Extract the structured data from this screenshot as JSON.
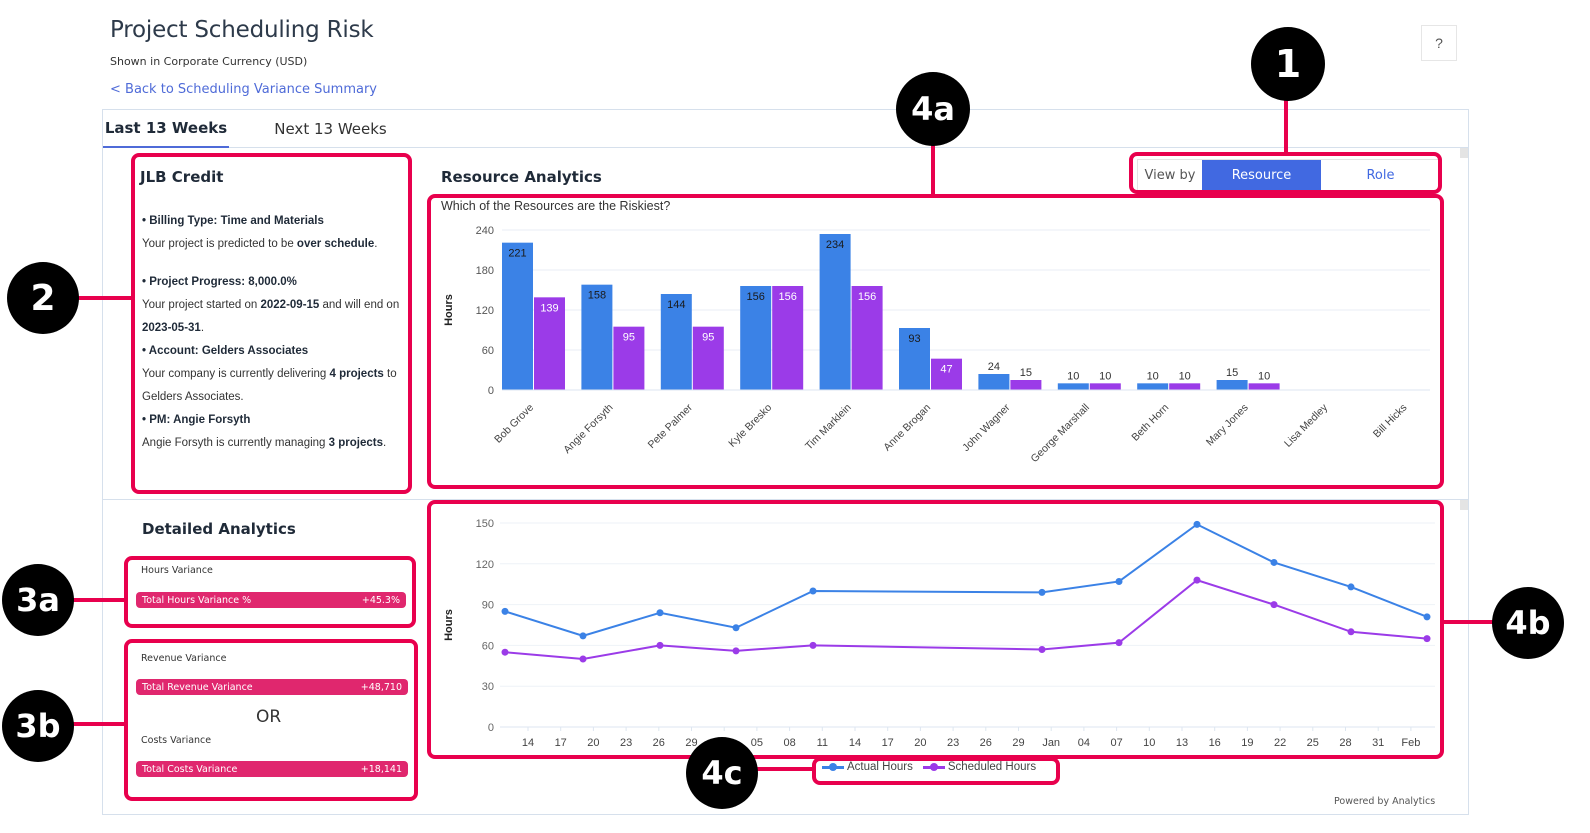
{
  "header": {
    "title": "Project Scheduling Risk",
    "subtitle": "Shown in Corporate Currency (USD)",
    "back_link": "< Back to Scheduling Variance Summary",
    "help_label": "?"
  },
  "tabs": [
    {
      "label": "Last 13 Weeks",
      "active": true
    },
    {
      "label": "Next 13 Weeks",
      "active": false
    }
  ],
  "project_info": {
    "title": "JLB Credit",
    "billing_type_label": "• Billing Type: Time and Materials",
    "schedule_text_pre": "Your project is predicted to be ",
    "schedule_text_bold": "over schedule",
    "schedule_text_post": ".",
    "progress_label": "• Project Progress: 8,000.0%",
    "started_pre": "Your project started on ",
    "start_date": "2022-09-15",
    "started_mid": " and will end on ",
    "end_date": "2023-05-31",
    "started_post": ".",
    "account_label": "• Account: Gelders Associates",
    "account_pre": "Your company is currently delivering ",
    "account_count": "4 projects",
    "account_post": " to Gelders Associates.",
    "pm_label": "• PM: Angie Forsyth",
    "pm_pre": "Angie Forsyth is currently managing ",
    "pm_count": "3 projects",
    "pm_post": "."
  },
  "resource_analytics": {
    "title": "Resource Analytics",
    "view_by_label": "View by",
    "view_by_options": [
      {
        "label": "Resource",
        "active": true
      },
      {
        "label": "Role",
        "active": false
      }
    ]
  },
  "detailed_analytics": {
    "title": "Detailed Analytics",
    "hours": {
      "section_label": "Hours Variance",
      "metric_label": "Total Hours Variance %",
      "value": "+45.3%"
    },
    "revenue": {
      "section_label": "Revenue Variance",
      "metric_label": "Total Revenue Variance",
      "value": "+48,710"
    },
    "or_label": "OR",
    "costs": {
      "section_label": "Costs Variance",
      "metric_label": "Total Costs Variance",
      "value": "+18,141"
    }
  },
  "colors": {
    "actual": "#3b82e6",
    "scheduled": "#9b3be8",
    "accent": "#4169e1",
    "kpi": "#e0276e",
    "annotation": "#e8004d"
  },
  "chart_data": [
    {
      "type": "bar",
      "title": "Which of the Resources are the Riskiest?",
      "xlabel": "",
      "ylabel": "Hours",
      "ylim": [
        0,
        240
      ],
      "yticks": [
        0,
        60,
        120,
        180,
        240
      ],
      "grid": true,
      "categories": [
        "Bob Grove",
        "Angie Forsyth",
        "Pete Palmer",
        "Kyle Bresko",
        "Tim Marklein",
        "Anne Brogan",
        "John Wagner",
        "George Marshall",
        "Beth Horn",
        "Mary Jones",
        "Lisa Medley",
        "Bill Hicks"
      ],
      "series": [
        {
          "name": "Actual Hours",
          "values": [
            221,
            158,
            144,
            156,
            234,
            93,
            24,
            10,
            10,
            15,
            null,
            null
          ]
        },
        {
          "name": "Scheduled Hours",
          "values": [
            139,
            95,
            95,
            156,
            156,
            47,
            15,
            10,
            10,
            10,
            null,
            null
          ]
        }
      ]
    },
    {
      "type": "line",
      "title": "",
      "xlabel": "",
      "ylabel": "Hours",
      "ylim": [
        0,
        150
      ],
      "yticks": [
        0,
        30,
        60,
        90,
        120,
        150
      ],
      "grid": true,
      "x_tick_labels": [
        "14",
        "17",
        "20",
        "23",
        "26",
        "29",
        "Dec",
        "05",
        "08",
        "11",
        "14",
        "17",
        "20",
        "23",
        "26",
        "29",
        "Jan",
        "04",
        "07",
        "10",
        "13",
        "16",
        "19",
        "22",
        "25",
        "28",
        "31",
        "Feb"
      ],
      "x": [
        "Nov 11",
        "Nov 18",
        "Nov 25",
        "Dec 2",
        "Dec 9",
        "Dec 30",
        "Jan 6",
        "Jan 13",
        "Jan 20",
        "Jan 27",
        "Feb 3"
      ],
      "series": [
        {
          "name": "Actual Hours",
          "values": [
            85,
            67,
            84,
            73,
            100,
            99,
            107,
            149,
            121,
            103,
            81
          ]
        },
        {
          "name": "Scheduled Hours",
          "values": [
            55,
            50,
            60,
            56,
            60,
            57,
            62,
            108,
            90,
            70,
            65
          ]
        }
      ],
      "legend": [
        "Actual Hours",
        "Scheduled Hours"
      ],
      "legend_position": "bottom"
    }
  ],
  "footer": {
    "powered_by": "Powered by Analytics"
  },
  "annotations": [
    {
      "label": "1"
    },
    {
      "label": "2"
    },
    {
      "label": "3a"
    },
    {
      "label": "3b"
    },
    {
      "label": "4a"
    },
    {
      "label": "4b"
    },
    {
      "label": "4c"
    }
  ]
}
